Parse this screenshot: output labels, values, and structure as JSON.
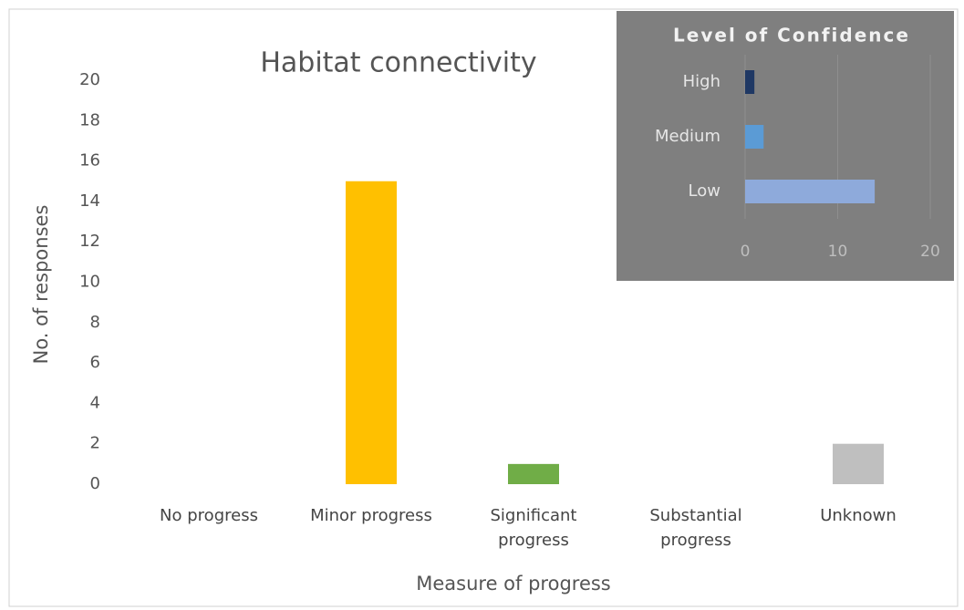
{
  "chart_data": [
    {
      "type": "bar",
      "title": "Habitat connectivity",
      "x_label": "Measure of progress",
      "y_label": "No. of responses",
      "categories": [
        "No progress",
        "Minor progress",
        "Significant progress",
        "Substantial progress",
        "Unknown"
      ],
      "values": [
        0,
        15,
        1,
        0,
        2
      ],
      "colors": [
        null,
        "#ffc000",
        "#70ad47",
        null,
        "#bfbfbf"
      ],
      "ylim": [
        0,
        20
      ],
      "yticks": [
        0,
        2,
        4,
        6,
        8,
        10,
        12,
        14,
        16,
        18,
        20
      ],
      "grid": false
    },
    {
      "type": "hbar",
      "title": "Level of Confidence",
      "categories": [
        "High",
        "Medium",
        "Low"
      ],
      "values": [
        1,
        2,
        14
      ],
      "colors": [
        "#1f3864",
        "#5b9bd5",
        "#8eaadb"
      ],
      "xlim": [
        0,
        20
      ],
      "xticks": [
        0,
        10,
        20
      ],
      "grid": true
    }
  ]
}
